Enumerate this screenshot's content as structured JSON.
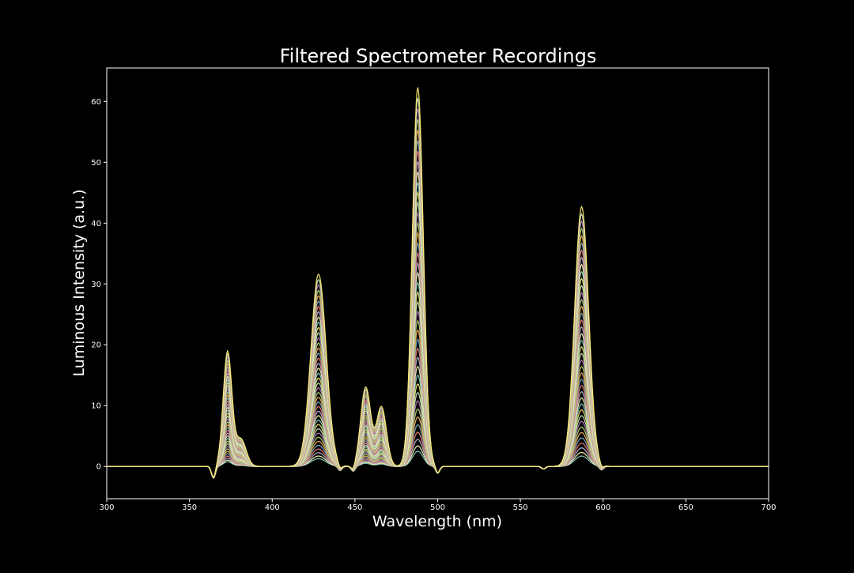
{
  "chart_data": {
    "type": "line",
    "title": "Filtered Spectrometer Recordings",
    "xlabel": "Wavelength (nm)",
    "ylabel": "Luminous Intensity (a.u.)",
    "xlim": [
      300,
      700
    ],
    "ylim": [
      -5.3,
      65.5
    ],
    "x_ticks": [
      300,
      350,
      400,
      450,
      500,
      550,
      600,
      650,
      700
    ],
    "y_ticks": [
      0,
      10,
      20,
      30,
      40,
      50,
      60
    ],
    "grid": false,
    "legend": "none",
    "background": "#000000",
    "foreground": "#ffffff",
    "series_count": 40,
    "series_palette": [
      "#8dd3c7",
      "#feffb3",
      "#bfbbd9",
      "#fa8174",
      "#81b1d2",
      "#fdb462",
      "#b3de69",
      "#bc82bd",
      "#ccebc4",
      "#ffed6f"
    ],
    "peaks": [
      {
        "center": 373,
        "peak_max": 18.8
      },
      {
        "center": 428,
        "peak_max": 31.6
      },
      {
        "center": 456.5,
        "peak_max": 13.0
      },
      {
        "center": 466,
        "peak_max": 9.8
      },
      {
        "center": 488,
        "peak_max": 62.3
      },
      {
        "center": 587,
        "peak_max": 42.7
      }
    ],
    "dips": [
      {
        "center": 364.5,
        "value": -1.9
      },
      {
        "center": 441,
        "value": -0.7
      },
      {
        "center": 449,
        "value": -0.8
      },
      {
        "center": 500,
        "value": -1.1
      },
      {
        "center": 564,
        "value": -0.4
      },
      {
        "center": 599,
        "value": -0.6
      }
    ]
  }
}
